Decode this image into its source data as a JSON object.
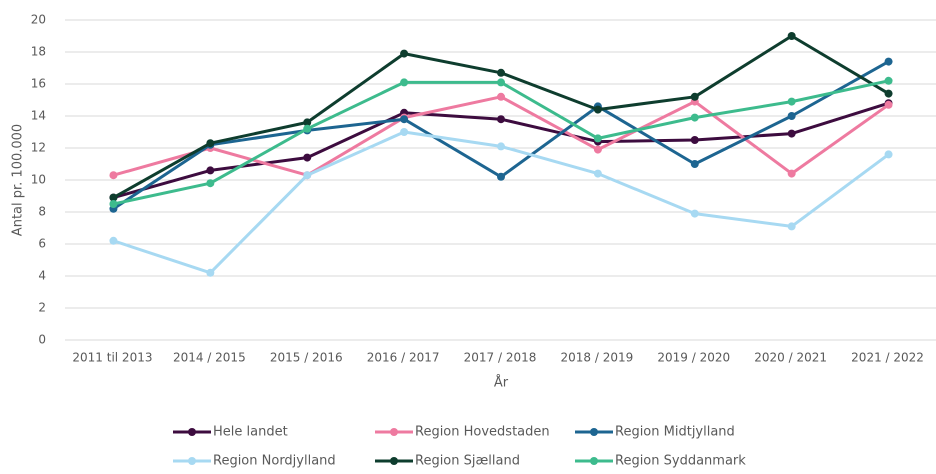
{
  "chart_data": {
    "type": "line",
    "x_label": "År",
    "y_label": "Antal pr. 100.000",
    "categories": [
      "2011 til 2013",
      "2014 / 2015",
      "2015 / 2016",
      "2016 / 2017",
      "2017 / 2018",
      "2018 / 2019",
      "2019 / 2020",
      "2020 / 2021",
      "2021 / 2022"
    ],
    "series": [
      {
        "name": "Hele landet",
        "color": "#3d0c3f",
        "values": [
          8.9,
          10.6,
          11.4,
          14.2,
          13.8,
          12.4,
          12.5,
          12.9,
          14.8
        ]
      },
      {
        "name": "Region Hovedstaden",
        "color": "#ee7aa0",
        "values": [
          10.3,
          12.0,
          10.3,
          13.9,
          15.2,
          11.9,
          14.9,
          10.4,
          14.7
        ]
      },
      {
        "name": "Region Midtjylland",
        "color": "#1d6591",
        "values": [
          8.2,
          12.2,
          13.1,
          13.8,
          10.2,
          14.6,
          11.0,
          14.0,
          17.4
        ]
      },
      {
        "name": "Region Nordjylland",
        "color": "#a7d9f2",
        "values": [
          6.2,
          4.2,
          10.3,
          13.0,
          12.1,
          10.4,
          7.9,
          7.1,
          11.6
        ]
      },
      {
        "name": "Region Sjælland",
        "color": "#0e3d2e",
        "values": [
          8.9,
          12.3,
          13.6,
          17.9,
          16.7,
          14.4,
          15.2,
          19.0,
          15.4
        ]
      },
      {
        "name": "Region Syddanmark",
        "color": "#3dbb8d",
        "values": [
          8.5,
          9.8,
          13.2,
          16.1,
          16.1,
          12.6,
          13.9,
          14.9,
          16.2
        ]
      }
    ],
    "ylim": [
      0,
      20
    ],
    "yticks": [
      0,
      2,
      4,
      6,
      8,
      10,
      12,
      14,
      16,
      18,
      20
    ],
    "grid": true,
    "legend": "bottom"
  }
}
